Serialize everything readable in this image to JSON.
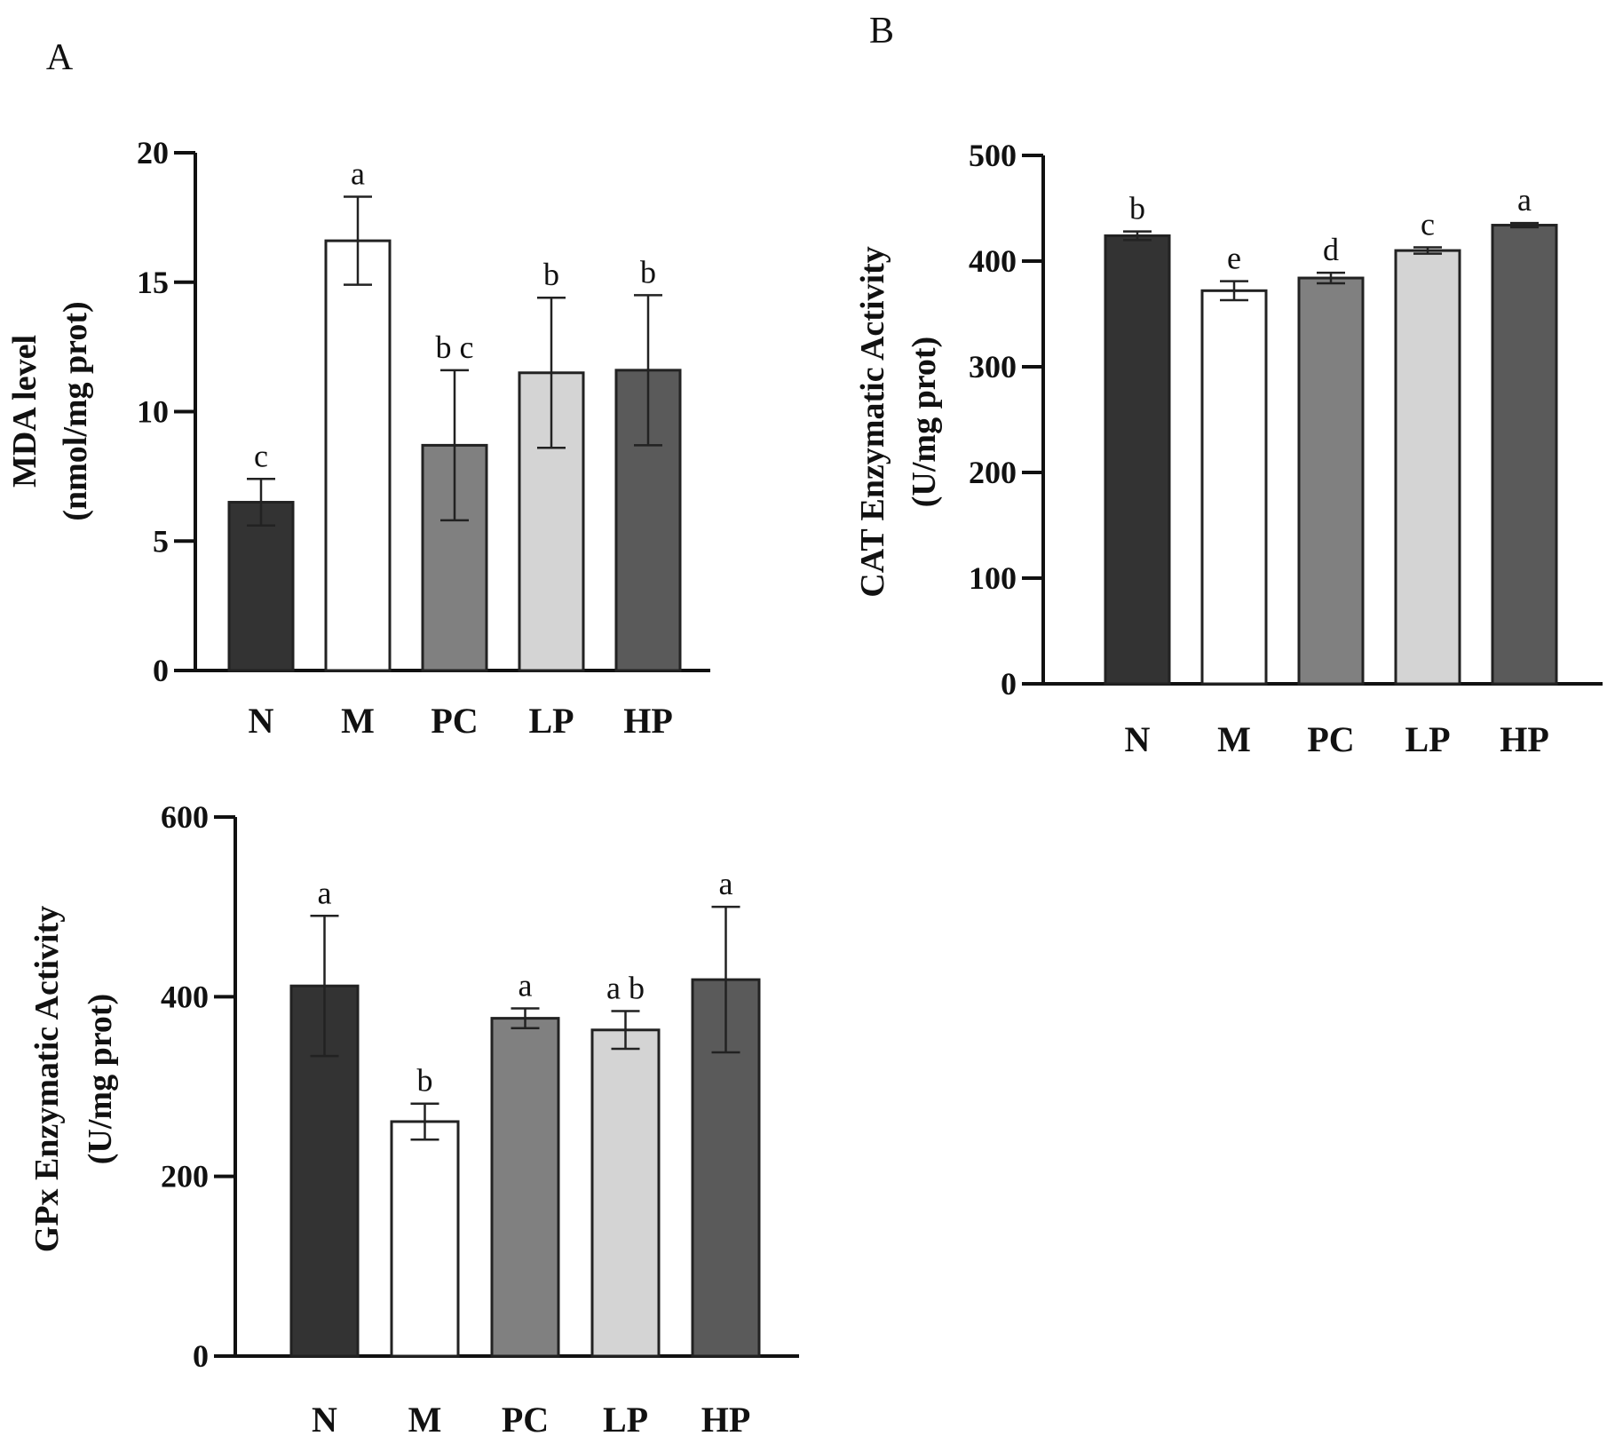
{
  "chart_data": [
    {
      "type": "bar",
      "panel_label": "A",
      "title": "",
      "ylabel": [
        "MDA level",
        "(nmol/mg prot)"
      ],
      "xlabel": "",
      "categories": [
        "N",
        "M",
        "PC",
        "LP",
        "HP"
      ],
      "values": [
        6.5,
        16.6,
        8.7,
        11.5,
        11.6
      ],
      "errors": [
        0.9,
        1.7,
        2.9,
        2.9,
        2.9
      ],
      "significance": [
        "c",
        "a",
        "b c",
        "b",
        "b"
      ],
      "ylim": [
        0,
        20
      ],
      "yticks": [
        "0",
        "5",
        "10",
        "15",
        "20"
      ],
      "colors": [
        "#333333",
        "#ffffff",
        "#808080",
        "#d4d4d4",
        "#5a5a5a"
      ]
    },
    {
      "type": "bar",
      "panel_label": "B",
      "title": "",
      "ylabel": [
        "CAT Enzymatic Activity",
        "(U/mg prot)"
      ],
      "xlabel": "",
      "categories": [
        "N",
        "M",
        "PC",
        "LP",
        "HP"
      ],
      "values": [
        424,
        372,
        384,
        410,
        434
      ],
      "errors": [
        4,
        9,
        5,
        3,
        2
      ],
      "significance": [
        "b",
        "e",
        "d",
        "c",
        "a"
      ],
      "ylim": [
        0,
        500
      ],
      "yticks": [
        "0",
        "100",
        "200",
        "300",
        "400",
        "500"
      ],
      "colors": [
        "#333333",
        "#ffffff",
        "#808080",
        "#d4d4d4",
        "#5a5a5a"
      ]
    },
    {
      "type": "bar",
      "panel_label": "",
      "title": "",
      "ylabel": [
        "GPx Enzymatic Activity",
        "(U/mg prot)"
      ],
      "xlabel": "",
      "categories": [
        "N",
        "M",
        "PC",
        "LP",
        "HP"
      ],
      "values": [
        412,
        261,
        376,
        363,
        419
      ],
      "errors": [
        78,
        20,
        11,
        21,
        81
      ],
      "significance": [
        "a",
        "b",
        "a",
        "a b",
        "a"
      ],
      "ylim": [
        0,
        600
      ],
      "yticks": [
        "0",
        "200",
        "400",
        "600"
      ],
      "colors": [
        "#333333",
        "#ffffff",
        "#808080",
        "#d4d4d4",
        "#5a5a5a"
      ]
    }
  ]
}
